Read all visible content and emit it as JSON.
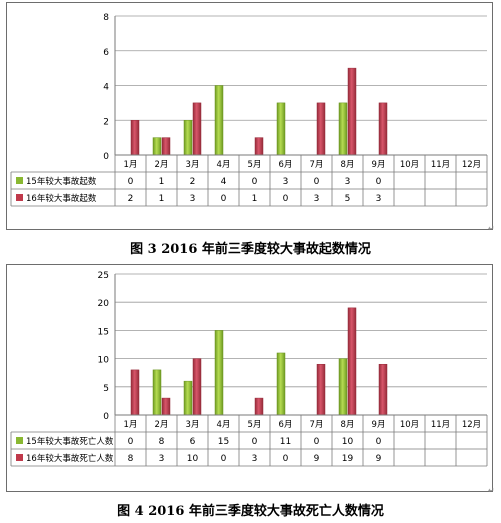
{
  "figures": [
    {
      "caption": "图 3   2016 年前三季度较大事故起数情况",
      "chart_data": {
        "type": "bar",
        "categories": [
          "1月",
          "2月",
          "3月",
          "4月",
          "5月",
          "6月",
          "7月",
          "8月",
          "9月",
          "10月",
          "11月",
          "12月"
        ],
        "ylim": [
          0,
          8
        ],
        "yticks": [
          "0",
          "2",
          "4",
          "6",
          "8"
        ],
        "series": [
          {
            "name": "15年较大事故起数",
            "color": "#8ab832",
            "values": [
              0,
              1,
              2,
              4,
              0,
              3,
              0,
              3,
              0,
              null,
              null,
              null
            ],
            "labels": [
              "0",
              "1",
              "2",
              "4",
              "0",
              "3",
              "0",
              "3",
              "0",
              "",
              "",
              ""
            ]
          },
          {
            "name": "16年较大事故起数",
            "color": "#c0394b",
            "values": [
              2,
              1,
              3,
              0,
              1,
              0,
              3,
              5,
              3,
              null,
              null,
              null
            ],
            "labels": [
              "2",
              "1",
              "3",
              "0",
              "1",
              "0",
              "3",
              "5",
              "3",
              "",
              "",
              ""
            ]
          }
        ],
        "grid": true,
        "legend": "table-below"
      }
    },
    {
      "caption": "图 4   2016 年前三季度较大事故死亡人数情况",
      "chart_data": {
        "type": "bar",
        "categories": [
          "1月",
          "2月",
          "3月",
          "4月",
          "5月",
          "6月",
          "7月",
          "8月",
          "9月",
          "10月",
          "11月",
          "12月"
        ],
        "ylim": [
          0,
          25
        ],
        "yticks": [
          "0",
          "5",
          "10",
          "15",
          "20",
          "25"
        ],
        "series": [
          {
            "name": "15年较大事故死亡人数",
            "color": "#8ab832",
            "values": [
              0,
              8,
              6,
              15,
              0,
              11,
              0,
              10,
              0,
              null,
              null,
              null
            ],
            "labels": [
              "0",
              "8",
              "6",
              "15",
              "0",
              "11",
              "0",
              "10",
              "0",
              "",
              "",
              ""
            ]
          },
          {
            "name": "16年较大事故死亡人数",
            "color": "#c0394b",
            "values": [
              8,
              3,
              10,
              0,
              3,
              0,
              9,
              19,
              9,
              null,
              null,
              null
            ],
            "labels": [
              "8",
              "3",
              "10",
              "0",
              "3",
              "0",
              "9",
              "19",
              "9",
              "",
              "",
              ""
            ]
          }
        ],
        "grid": true,
        "legend": "table-below"
      }
    }
  ]
}
